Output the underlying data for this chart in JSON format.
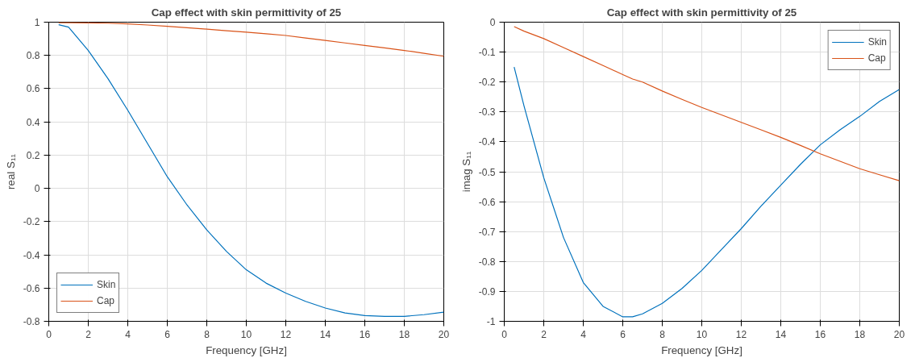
{
  "chart_data": [
    {
      "type": "line",
      "title": "Cap effect with skin permittivity of 25",
      "xlabel": "Frequency [GHz]",
      "ylabel": "real S₁₁",
      "xlim": [
        0,
        20
      ],
      "ylim": [
        -0.8,
        1
      ],
      "xticks": [
        0,
        2,
        4,
        6,
        8,
        10,
        12,
        14,
        16,
        18,
        20
      ],
      "yticks": [
        -0.8,
        -0.6,
        -0.4,
        -0.2,
        0,
        0.2,
        0.4,
        0.6,
        0.8,
        1
      ],
      "grid": true,
      "legend": "bottom left",
      "x": [
        0.5,
        1,
        2,
        3,
        4,
        5,
        6,
        7,
        8,
        9,
        10,
        11,
        12,
        13,
        14,
        15,
        16,
        17,
        18,
        19,
        20
      ],
      "series": [
        {
          "name": "Skin",
          "color": "#0072bd",
          "values": [
            0.985,
            0.97,
            0.83,
            0.66,
            0.47,
            0.27,
            0.07,
            -0.1,
            -0.25,
            -0.38,
            -0.49,
            -0.57,
            -0.63,
            -0.68,
            -0.72,
            -0.75,
            -0.765,
            -0.77,
            -0.77,
            -0.76,
            -0.745
          ]
        },
        {
          "name": "Cap",
          "color": "#d95319",
          "values": [
            0.997,
            0.997,
            0.996,
            0.994,
            0.99,
            0.983,
            0.975,
            0.967,
            0.958,
            0.948,
            0.94,
            0.93,
            0.92,
            0.905,
            0.89,
            0.875,
            0.86,
            0.845,
            0.83,
            0.813,
            0.795
          ]
        }
      ]
    },
    {
      "type": "line",
      "title": "Cap effect with skin permittivity of 25",
      "xlabel": "Frequency [GHz]",
      "ylabel": "imag S₁₁",
      "xlim": [
        0,
        20
      ],
      "ylim": [
        -1,
        0
      ],
      "xticks": [
        0,
        2,
        4,
        6,
        8,
        10,
        12,
        14,
        16,
        18,
        20
      ],
      "yticks": [
        -1,
        -0.9,
        -0.8,
        -0.7,
        -0.6,
        -0.5,
        -0.4,
        -0.3,
        -0.2,
        -0.1,
        0
      ],
      "grid": true,
      "legend": "top right",
      "x": [
        0.5,
        1,
        2,
        3,
        4,
        5,
        6,
        6.5,
        7,
        8,
        9,
        10,
        11,
        12,
        13,
        14,
        15,
        16,
        17,
        18,
        19,
        20
      ],
      "series": [
        {
          "name": "Skin",
          "color": "#0072bd",
          "values": [
            -0.15,
            -0.28,
            -0.52,
            -0.72,
            -0.87,
            -0.95,
            -0.985,
            -0.985,
            -0.975,
            -0.94,
            -0.89,
            -0.83,
            -0.76,
            -0.69,
            -0.615,
            -0.545,
            -0.475,
            -0.41,
            -0.36,
            -0.315,
            -0.265,
            -0.225
          ]
        },
        {
          "name": "Cap",
          "color": "#d95319",
          "values": [
            -0.015,
            -0.03,
            -0.055,
            -0.085,
            -0.115,
            -0.145,
            -0.175,
            -0.19,
            -0.2,
            -0.23,
            -0.258,
            -0.285,
            -0.31,
            -0.335,
            -0.36,
            -0.385,
            -0.412,
            -0.44,
            -0.465,
            -0.49,
            -0.51,
            -0.53
          ]
        }
      ]
    }
  ]
}
